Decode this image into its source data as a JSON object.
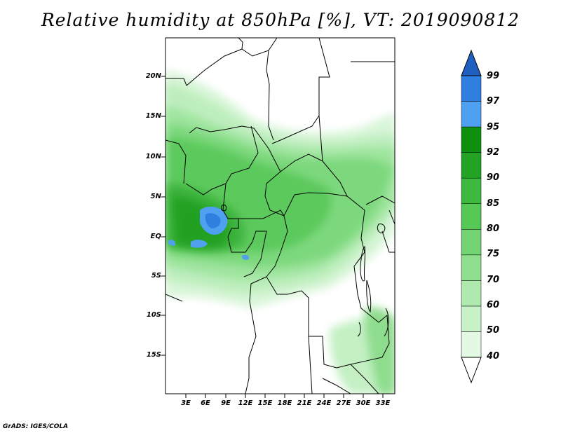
{
  "title": "Relative humidity at 850hPa [%], VT: 2019090812",
  "credit": "GrADS: IGES/COLA",
  "lat_labels": [
    "20N",
    "15N",
    "10N",
    "5N",
    "EQ",
    "5S",
    "10S",
    "15S"
  ],
  "lon_labels": [
    "3E",
    "6E",
    "9E",
    "12E",
    "15E",
    "18E",
    "21E",
    "24E",
    "27E",
    "30E",
    "33E"
  ],
  "colorbar": {
    "labels": [
      "99",
      "97",
      "95",
      "92",
      "90",
      "85",
      "80",
      "75",
      "70",
      "60",
      "50",
      "40"
    ],
    "colors": [
      "#1f5fbf",
      "#2f7fe0",
      "#4fa0f0",
      "#0e8f0e",
      "#23a323",
      "#3db93d",
      "#56c856",
      "#72d472",
      "#8fdf8f",
      "#aee9ae",
      "#c9f2c9",
      "#e3f9e3"
    ]
  }
}
